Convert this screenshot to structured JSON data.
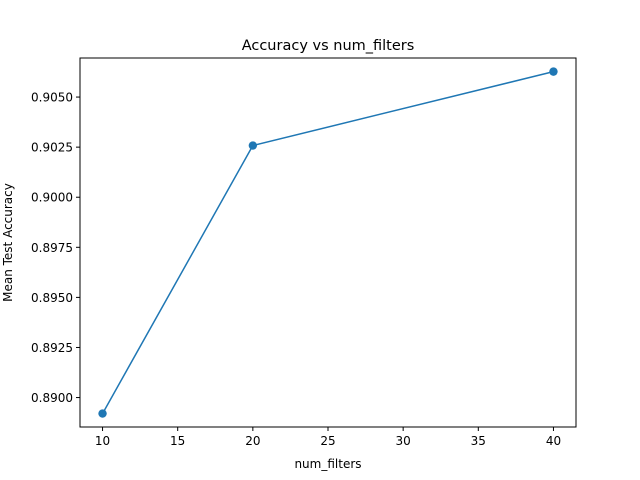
{
  "chart_data": {
    "type": "line",
    "title": "Accuracy vs num_filters",
    "xlabel": "num_filters",
    "ylabel": "Mean Test Accuracy",
    "x": [
      10,
      20,
      40
    ],
    "series": [
      {
        "values": [
          0.8892,
          0.90258,
          0.90627
        ],
        "color": "#1f77b4",
        "marker": "circle"
      }
    ],
    "xlim": [
      8.5,
      41.5
    ],
    "ylim": [
      0.88853,
      0.90695
    ],
    "xticks": [
      10,
      15,
      20,
      25,
      30,
      35,
      40
    ],
    "xtick_labels": [
      "10",
      "15",
      "20",
      "25",
      "30",
      "35",
      "40"
    ],
    "yticks": [
      0.89,
      0.8925,
      0.895,
      0.8975,
      0.9,
      0.9025,
      0.905
    ],
    "ytick_labels": [
      "0.8900",
      "0.8925",
      "0.8950",
      "0.8975",
      "0.9000",
      "0.9025",
      "0.9050"
    ],
    "grid": false,
    "legend": "none"
  }
}
